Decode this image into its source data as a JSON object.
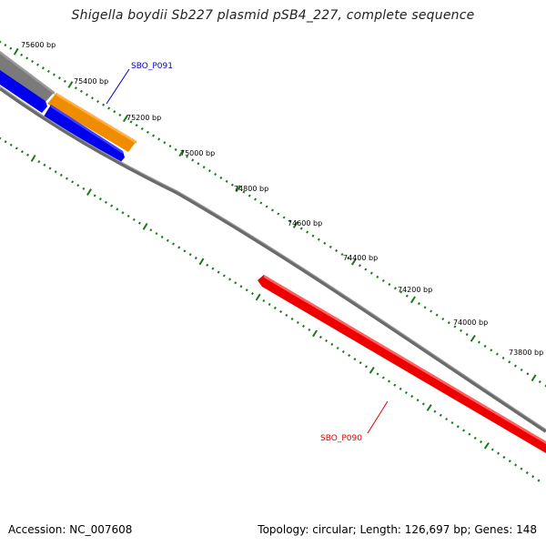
{
  "title": "Shigella boydii Sb227 plasmid pSB4_227, complete sequence",
  "ticks": [
    {
      "label": "75600 bp"
    },
    {
      "label": "75400 bp"
    },
    {
      "label": "75200 bp"
    },
    {
      "label": "75000 bp"
    },
    {
      "label": "74800 bp"
    },
    {
      "label": "74600 bp"
    },
    {
      "label": "74400 bp"
    },
    {
      "label": "74200 bp"
    },
    {
      "label": "74000 bp"
    },
    {
      "label": "73800 bp"
    }
  ],
  "genes": [
    {
      "label": "SBO_P091",
      "color": "#0000cc"
    },
    {
      "label": "SBO_P090",
      "color": "#dd0000"
    }
  ],
  "colors": {
    "backbone": "#777777",
    "forward_feature": "#f08c00",
    "reverse_feature": "#0000ee",
    "reverse_feature_red": "#ee0000",
    "tick": "#1a7a1a"
  },
  "footer": {
    "accession": "Accession: NC_007608",
    "topology": "Topology: circular; Length: 126,697 bp; Genes: 148"
  }
}
